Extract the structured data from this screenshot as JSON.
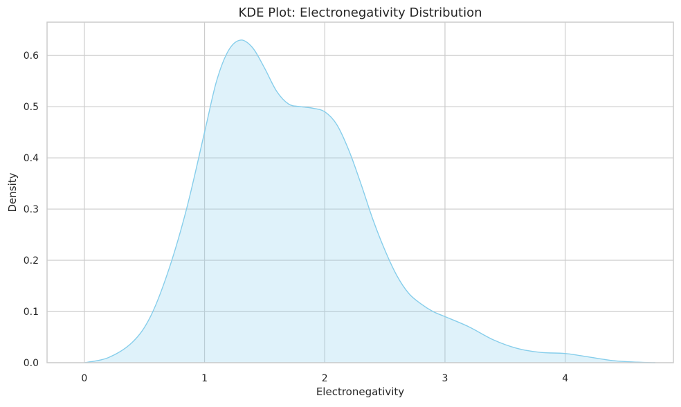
{
  "chart_data": {
    "type": "area",
    "title": "KDE Plot: Electronegativity Distribution",
    "xlabel": "Electronegativity",
    "ylabel": "Density",
    "xlim": [
      -0.31,
      4.9
    ],
    "ylim": [
      0.0,
      0.665
    ],
    "xticks": [
      0,
      1,
      2,
      3,
      4
    ],
    "yticks": [
      0.0,
      0.1,
      0.2,
      0.3,
      0.4,
      0.5,
      0.6
    ],
    "xtick_labels": [
      "0",
      "1",
      "2",
      "3",
      "4"
    ],
    "ytick_labels": [
      "0.0",
      "0.1",
      "0.2",
      "0.3",
      "0.4",
      "0.5",
      "0.6"
    ],
    "grid": true,
    "legend": "none",
    "colors": {
      "line": "#87CEEB",
      "fill": "#87CEEB",
      "fill_opacity": 0.27
    },
    "series": [
      {
        "x": [
          0.0,
          0.2,
          0.4,
          0.55,
          0.7,
          0.85,
          1.0,
          1.1,
          1.2,
          1.3,
          1.4,
          1.5,
          1.6,
          1.7,
          1.8,
          1.9,
          2.0,
          2.1,
          2.2,
          2.3,
          2.4,
          2.5,
          2.6,
          2.7,
          2.8,
          2.9,
          3.0,
          3.2,
          3.4,
          3.6,
          3.8,
          4.0,
          4.2,
          4.4,
          4.6,
          4.75
        ],
        "y": [
          0.0,
          0.01,
          0.04,
          0.09,
          0.18,
          0.3,
          0.45,
          0.55,
          0.61,
          0.63,
          0.615,
          0.575,
          0.53,
          0.505,
          0.5,
          0.497,
          0.49,
          0.465,
          0.415,
          0.35,
          0.28,
          0.22,
          0.17,
          0.135,
          0.115,
          0.1,
          0.09,
          0.07,
          0.045,
          0.028,
          0.02,
          0.018,
          0.011,
          0.004,
          0.001,
          0.0
        ]
      }
    ]
  }
}
